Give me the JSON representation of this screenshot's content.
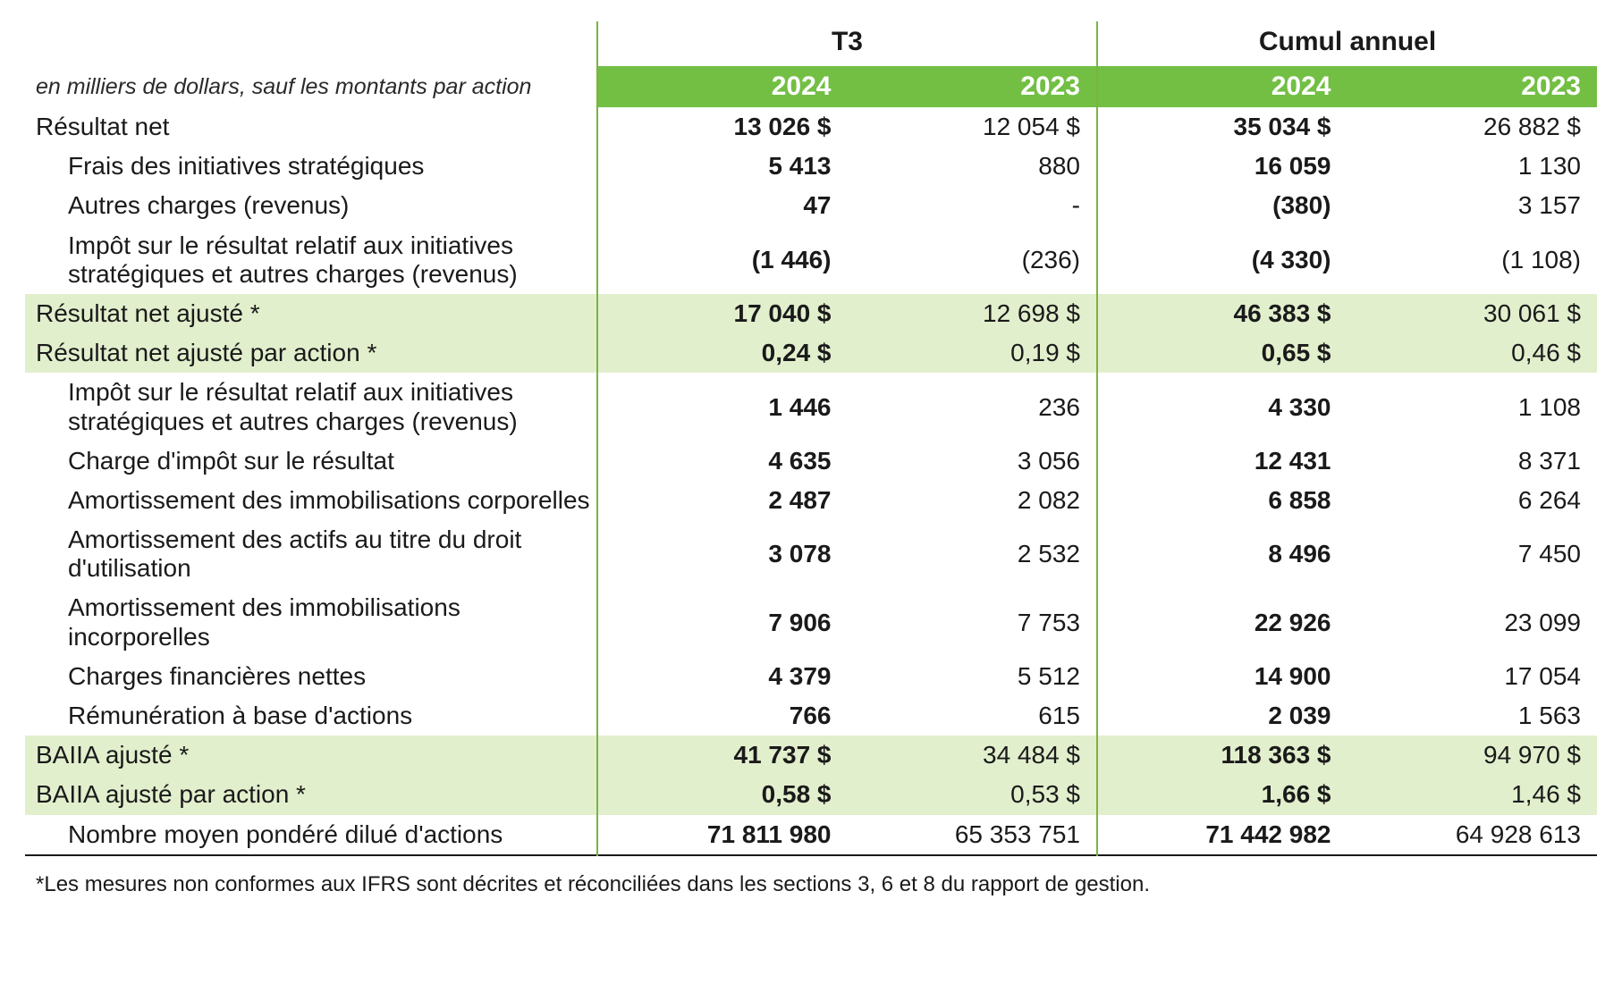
{
  "colors": {
    "header_green": "#72bf44",
    "highlight_green": "#e2efcd",
    "separator_green": "#7cb342",
    "rule": "#1a1a1a",
    "text": "#1a1a1a",
    "header_text": "#ffffff"
  },
  "header": {
    "caption": "en milliers de dollars, sauf les montants par action",
    "groups": [
      "T3",
      "Cumul annuel"
    ],
    "years": [
      "2024",
      "2023",
      "2024",
      "2023"
    ]
  },
  "rows": [
    {
      "type": "data",
      "label": "Résultat net",
      "indent": false,
      "labelBold": false,
      "cells": [
        {
          "v": "13 026 $",
          "b": true
        },
        {
          "v": "12 054 $",
          "b": false
        },
        {
          "v": "35 034 $",
          "b": true
        },
        {
          "v": "26 882 $",
          "b": false
        }
      ]
    },
    {
      "type": "data",
      "label": "Frais des initiatives stratégiques",
      "indent": true,
      "labelBold": false,
      "cells": [
        {
          "v": "5 413",
          "b": true
        },
        {
          "v": "880",
          "b": false
        },
        {
          "v": "16 059",
          "b": true
        },
        {
          "v": "1 130",
          "b": false
        }
      ]
    },
    {
      "type": "data",
      "label": "Autres charges (revenus)",
      "indent": true,
      "labelBold": false,
      "cells": [
        {
          "v": "47",
          "b": true
        },
        {
          "v": "-",
          "b": false
        },
        {
          "v": "(380)",
          "b": true
        },
        {
          "v": "3 157",
          "b": false
        }
      ]
    },
    {
      "type": "data",
      "label": "Impôt sur le résultat relatif aux initiatives stratégiques et autres charges (revenus)",
      "indent": true,
      "labelBold": false,
      "cells": [
        {
          "v": "(1 446)",
          "b": true
        },
        {
          "v": "(236)",
          "b": false
        },
        {
          "v": "(4 330)",
          "b": true
        },
        {
          "v": "(1 108)",
          "b": false
        }
      ]
    },
    {
      "type": "highlight",
      "label": "Résultat net ajusté *",
      "indent": false,
      "labelBold": false,
      "cells": [
        {
          "v": "17 040 $",
          "b": true
        },
        {
          "v": "12 698 $",
          "b": false
        },
        {
          "v": "46 383 $",
          "b": true
        },
        {
          "v": "30 061 $",
          "b": false
        }
      ]
    },
    {
      "type": "highlight",
      "label": "Résultat net ajusté par action *",
      "indent": false,
      "labelBold": false,
      "cells": [
        {
          "v": "0,24 $",
          "b": true
        },
        {
          "v": "0,19 $",
          "b": false
        },
        {
          "v": "0,65 $",
          "b": true
        },
        {
          "v": "0,46 $",
          "b": false
        }
      ]
    },
    {
      "type": "data",
      "label": "Impôt sur le résultat relatif aux initiatives stratégiques et autres charges (revenus)",
      "indent": true,
      "labelBold": false,
      "cells": [
        {
          "v": "1 446",
          "b": true
        },
        {
          "v": "236",
          "b": false
        },
        {
          "v": "4 330",
          "b": true
        },
        {
          "v": "1 108",
          "b": false
        }
      ]
    },
    {
      "type": "data",
      "label": "Charge d'impôt sur le résultat",
      "indent": true,
      "labelBold": false,
      "cells": [
        {
          "v": "4 635",
          "b": true
        },
        {
          "v": "3 056",
          "b": false
        },
        {
          "v": "12 431",
          "b": true
        },
        {
          "v": "8 371",
          "b": false
        }
      ]
    },
    {
      "type": "data",
      "label": "Amortissement des immobilisations corporelles",
      "indent": true,
      "labelBold": false,
      "cells": [
        {
          "v": "2 487",
          "b": true
        },
        {
          "v": "2 082",
          "b": false
        },
        {
          "v": "6 858",
          "b": true
        },
        {
          "v": "6 264",
          "b": false
        }
      ]
    },
    {
      "type": "data",
      "label": "Amortissement des actifs au titre du droit d'utilisation",
      "indent": true,
      "labelBold": false,
      "cells": [
        {
          "v": "3 078",
          "b": true
        },
        {
          "v": "2 532",
          "b": false
        },
        {
          "v": "8 496",
          "b": true
        },
        {
          "v": "7 450",
          "b": false
        }
      ]
    },
    {
      "type": "data",
      "label": "Amortissement des immobilisations incorporelles",
      "indent": true,
      "labelBold": false,
      "cells": [
        {
          "v": "7 906",
          "b": true
        },
        {
          "v": "7 753",
          "b": false
        },
        {
          "v": "22 926",
          "b": true
        },
        {
          "v": "23 099",
          "b": false
        }
      ]
    },
    {
      "type": "data",
      "label": "Charges financières nettes",
      "indent": true,
      "labelBold": false,
      "cells": [
        {
          "v": "4 379",
          "b": true
        },
        {
          "v": "5 512",
          "b": false
        },
        {
          "v": "14 900",
          "b": true
        },
        {
          "v": "17 054",
          "b": false
        }
      ]
    },
    {
      "type": "data",
      "label": "Rémunération à base d'actions",
      "indent": true,
      "labelBold": false,
      "cells": [
        {
          "v": "766",
          "b": true
        },
        {
          "v": "615",
          "b": false
        },
        {
          "v": "2 039",
          "b": true
        },
        {
          "v": "1 563",
          "b": false
        }
      ]
    },
    {
      "type": "highlight",
      "label": "BAIIA ajusté *",
      "indent": false,
      "labelBold": false,
      "cells": [
        {
          "v": "41 737 $",
          "b": true
        },
        {
          "v": "34 484 $",
          "b": false
        },
        {
          "v": "118 363 $",
          "b": true
        },
        {
          "v": "94 970 $",
          "b": false
        }
      ]
    },
    {
      "type": "highlight",
      "label": "BAIIA ajusté par action *",
      "indent": false,
      "labelBold": false,
      "cells": [
        {
          "v": "0,58 $",
          "b": true
        },
        {
          "v": "0,53 $",
          "b": false
        },
        {
          "v": "1,66 $",
          "b": true
        },
        {
          "v": "1,46 $",
          "b": false
        }
      ]
    },
    {
      "type": "data",
      "label": "Nombre moyen pondéré dilué d'actions",
      "indent": true,
      "labelBold": false,
      "cells": [
        {
          "v": "71 811 980",
          "b": true
        },
        {
          "v": "65 353 751",
          "b": false
        },
        {
          "v": "71 442 982",
          "b": true
        },
        {
          "v": "64 928 613",
          "b": false
        }
      ]
    }
  ],
  "footnote": "*Les mesures non conformes aux IFRS sont décrites et réconciliées dans les sections 3, 6 et 8 du rapport de gestion."
}
